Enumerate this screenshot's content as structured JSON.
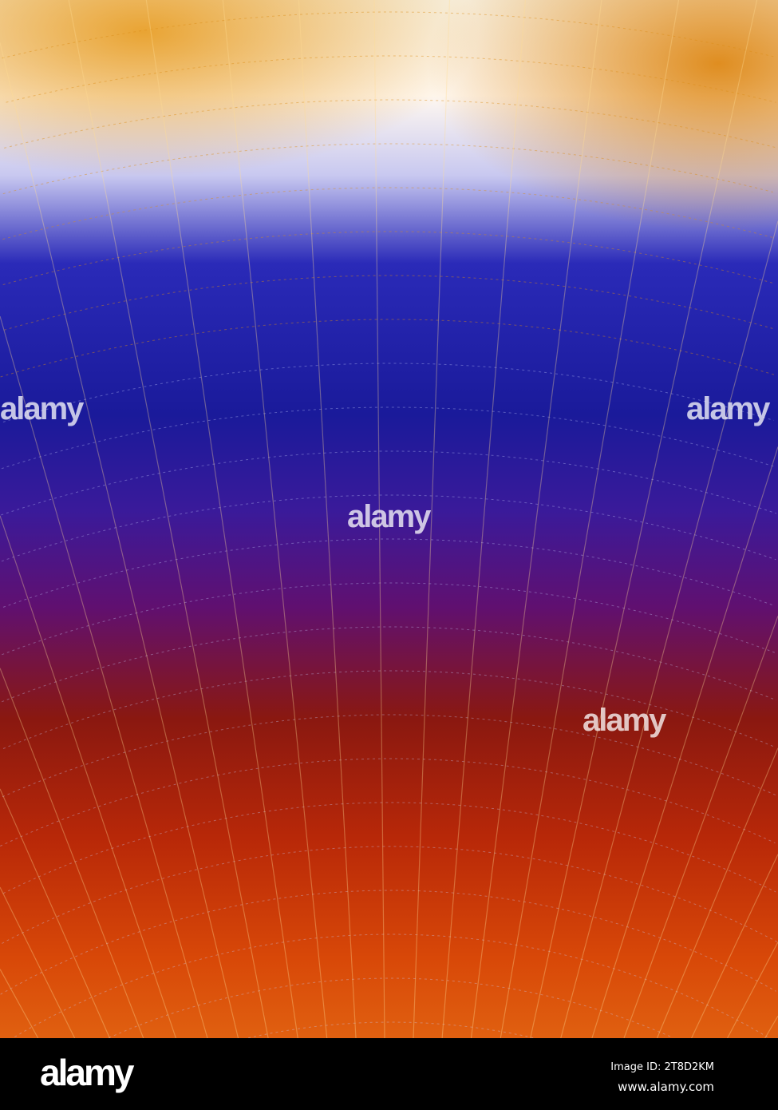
{
  "image": {
    "subject": "fractal",
    "colors": {
      "top": "#f0b020",
      "highlight": "#ffffff",
      "middle": "#1a1a9a",
      "bottom": "#d84808"
    }
  },
  "watermark": {
    "text": "alamy"
  },
  "footer": {
    "logo": "alamy",
    "image_id": "Image ID: 2T8D2KM",
    "website": "www.alamy.com"
  }
}
